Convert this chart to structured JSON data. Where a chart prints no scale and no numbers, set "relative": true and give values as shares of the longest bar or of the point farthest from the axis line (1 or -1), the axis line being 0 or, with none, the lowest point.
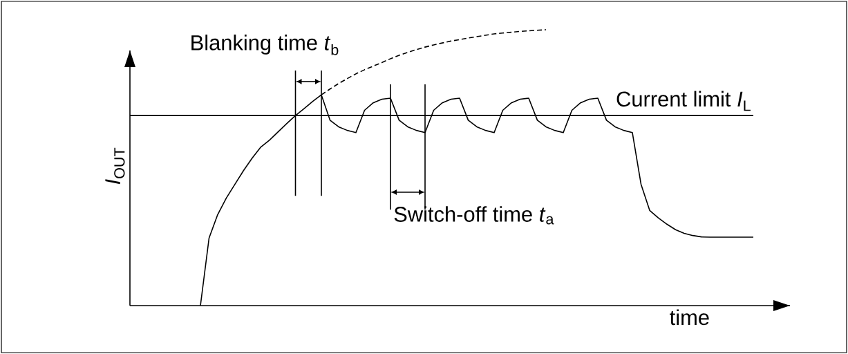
{
  "chart_data": {
    "type": "line",
    "relative": true,
    "xlabel": "time",
    "ylabel": "*I*$_{OUT}$",
    "categories": [
      null,
      null,
      null,
      null,
      null,
      null,
      null,
      null,
      null,
      null,
      null,
      null,
      null,
      null,
      null,
      null,
      null,
      null,
      null,
      null,
      null,
      null,
      null,
      null,
      null,
      null,
      null,
      null,
      null,
      null,
      null,
      null,
      null,
      null,
      null,
      null,
      null,
      null,
      null,
      null,
      null,
      null,
      null,
      null,
      null,
      null,
      null,
      null,
      null,
      null,
      null,
      null,
      null,
      null,
      null,
      null,
      null,
      null,
      null,
      null,
      null,
      null,
      null,
      null,
      null,
      null,
      null,
      null,
      null,
      null,
      null,
      null,
      null
    ],
    "series": [
      {
        "color": "#000000",
        "values": [
          null,
          null,
          null,
          null,
          null,
          null,
          null,
          null,
          0,
          0.245,
          0.33,
          0.39,
          0.44,
          0.49,
          0.535,
          0.575,
          0.6,
          0.63,
          0.66,
          0.689,
          0.714,
          0.74,
          0.764,
          0.672,
          0.648,
          0.635,
          0.627,
          0.708,
          0.735,
          0.748,
          0.752,
          0.672,
          0.648,
          0.635,
          0.627,
          0.708,
          0.735,
          0.748,
          0.752,
          0.672,
          0.648,
          0.635,
          0.627,
          0.708,
          0.735,
          0.748,
          0.752,
          0.672,
          0.648,
          0.635,
          0.627,
          0.708,
          0.735,
          0.748,
          0.752,
          0.672,
          0.648,
          0.635,
          0.627,
          0.44,
          0.345,
          0.318,
          0.295,
          0.275,
          0.262,
          0.254,
          0.249,
          0.248,
          0.248,
          0.248,
          0.248,
          0.248,
          0.248
        ]
      },
      {
        "color": "#000000",
        "line_style": "dashed",
        "values": [
          null,
          null,
          null,
          null,
          null,
          null,
          null,
          null,
          null,
          null,
          null,
          null,
          null,
          null,
          null,
          null,
          null,
          null,
          null,
          null,
          null,
          null,
          0.764,
          0.785,
          0.805,
          0.823,
          0.84,
          0.855,
          0.868,
          0.881,
          0.895,
          0.907,
          0.918,
          0.928,
          0.937,
          0.945,
          0.952,
          0.959,
          0.964,
          0.97,
          0.975,
          0.98,
          0.985,
          0.988,
          0.991,
          0.994,
          0.996,
          0.998,
          1.0,
          null,
          null,
          null,
          null,
          null,
          null,
          null,
          null,
          null,
          null,
          null,
          null,
          null,
          null,
          null,
          null,
          null,
          null,
          null,
          null,
          null,
          null,
          null,
          null
        ]
      }
    ],
    "ref_lines": [
      {
        "axis": "y",
        "value": 0.689,
        "label": "Current limit *I*$_{L}$"
      }
    ],
    "annotations": [
      "Blanking time *t*$_{b}$",
      "Switch-off time *t*$_{a}$"
    ]
  }
}
